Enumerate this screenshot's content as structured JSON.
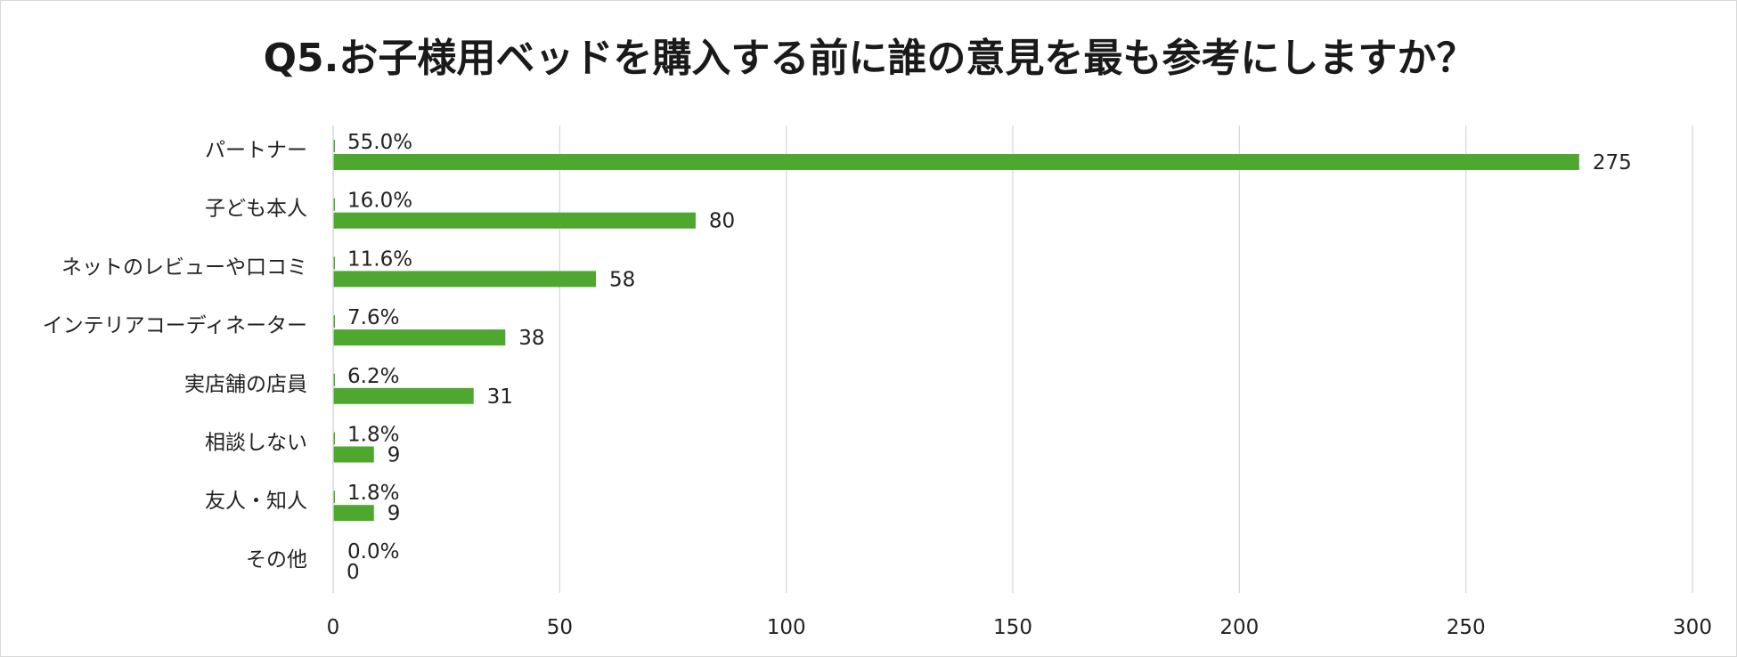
{
  "chart_data": {
    "type": "bar",
    "orientation": "horizontal",
    "title": "Q5.お子様用ベッドを購入する前に誰の意見を最も参考にしますか？",
    "categories": [
      "パートナー",
      "子ども本人",
      "ネットのレビューや口コミ",
      "インテリアコーディネーター",
      "実店舗の店員",
      "相談しない",
      "友人・知人",
      "その他"
    ],
    "series": [
      {
        "values": [
          275,
          80,
          58,
          38,
          31,
          9,
          9,
          0
        ],
        "color": "#4ea72e"
      },
      {
        "values": [
          55.0,
          16.0,
          11.6,
          7.6,
          6.2,
          1.8,
          1.8,
          0.0
        ],
        "color": "#4ea72e"
      }
    ],
    "value_labels": [
      "275",
      "80",
      "58",
      "38",
      "31",
      "9",
      "9",
      "0"
    ],
    "percent_labels": [
      "55.0%",
      "16.0%",
      "11.6%",
      "7.6%",
      "6.2%",
      "1.8%",
      "1.8%",
      "0.0%"
    ],
    "xlim": [
      0,
      300
    ],
    "xticks": [
      0,
      50,
      100,
      150,
      200,
      250,
      300
    ],
    "xtick_labels": [
      "0",
      "50",
      "100",
      "150",
      "200",
      "250",
      "300"
    ],
    "grid": "vertical",
    "legend": "none",
    "colors": {
      "bar": "#4ea72e",
      "grid": "#d9d9d9",
      "text": "#222222"
    }
  }
}
